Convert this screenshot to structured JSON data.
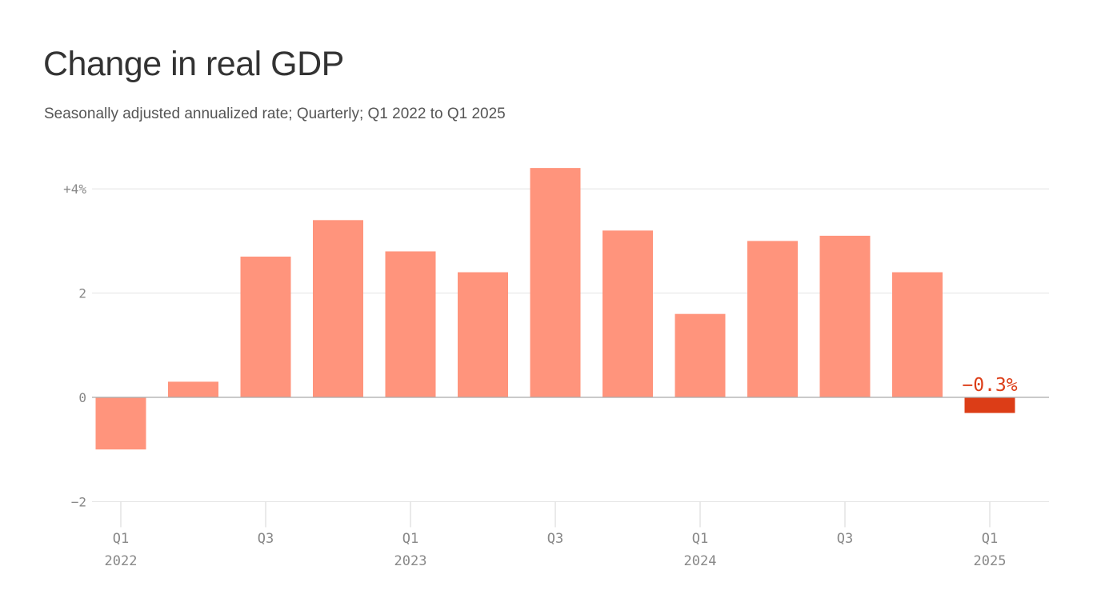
{
  "chart_data": {
    "type": "bar",
    "title": "Change in real GDP",
    "subtitle": "Seasonally adjusted annualized rate; Quarterly; Q1 2022 to Q1 2025",
    "categories": [
      "Q1 2022",
      "Q2 2022",
      "Q3 2022",
      "Q4 2022",
      "Q1 2023",
      "Q2 2023",
      "Q3 2023",
      "Q4 2023",
      "Q1 2024",
      "Q2 2024",
      "Q3 2024",
      "Q4 2024",
      "Q1 2025"
    ],
    "values": [
      -1.0,
      0.3,
      2.7,
      3.4,
      2.8,
      2.4,
      4.4,
      3.2,
      1.6,
      3.0,
      3.1,
      2.4,
      -0.3
    ],
    "ylim": [
      -2,
      4.5
    ],
    "yticks": [
      {
        "value": 4,
        "label": "+4%"
      },
      {
        "value": 2,
        "label": "2"
      },
      {
        "value": 0,
        "label": "0"
      },
      {
        "value": -2,
        "label": "−2"
      }
    ],
    "xticks": [
      {
        "index": 0,
        "quarter": "Q1",
        "year": "2022"
      },
      {
        "index": 2,
        "quarter": "Q3",
        "year": ""
      },
      {
        "index": 4,
        "quarter": "Q1",
        "year": "2023"
      },
      {
        "index": 6,
        "quarter": "Q3",
        "year": ""
      },
      {
        "index": 8,
        "quarter": "Q1",
        "year": "2024"
      },
      {
        "index": 10,
        "quarter": "Q3",
        "year": ""
      },
      {
        "index": 12,
        "quarter": "Q1",
        "year": "2025"
      }
    ],
    "highlight": {
      "index": 12,
      "label": "−0.3%"
    },
    "grid": true,
    "colors": {
      "bar": "#ff947c",
      "highlight": "#dc3d17",
      "grid": "#e2e2e2",
      "zero": "#aaaaaa",
      "tick_text": "#888888"
    }
  }
}
